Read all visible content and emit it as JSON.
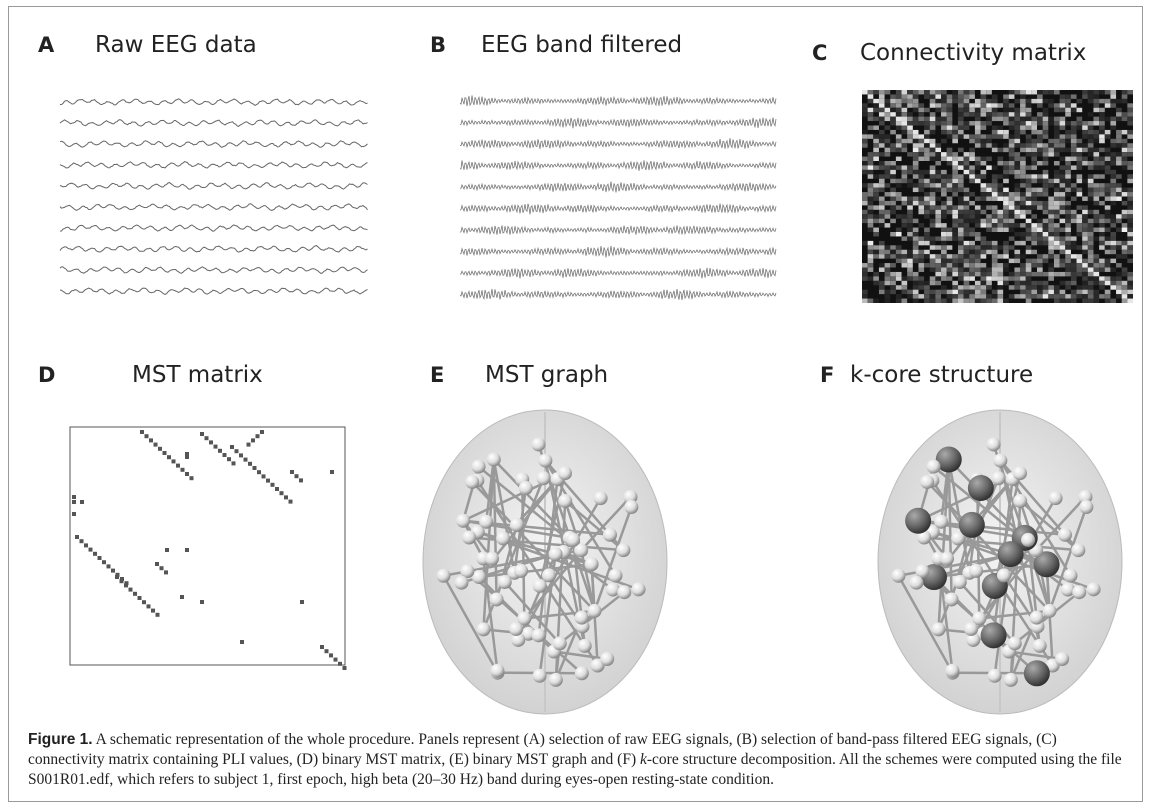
{
  "panels": [
    {
      "letter": "A",
      "title": "Raw EEG data"
    },
    {
      "letter": "B",
      "title": "EEG band filtered"
    },
    {
      "letter": "C",
      "title": "Connectivity matrix"
    },
    {
      "letter": "D",
      "title": "MST matrix"
    },
    {
      "letter": "E",
      "title": "MST graph"
    },
    {
      "letter": "F",
      "title": "k-core structure"
    }
  ],
  "caption": {
    "label": "Figure 1.",
    "text": " A schematic representation of the whole procedure. Panels represent (A) selection of raw EEG signals, (B) selection of band-pass filtered EEG signals, (C) connectivity matrix containing PLI values, (D) binary MST matrix, (E) binary MST graph and (F) ",
    "italic": "k",
    "text_end": "-core structure decomposition. All the schemes were computed using the file S001R01.edf, which refers to subject 1, first epoch, high beta (20–30 Hz) band during eyes-open resting-state condition."
  }
}
